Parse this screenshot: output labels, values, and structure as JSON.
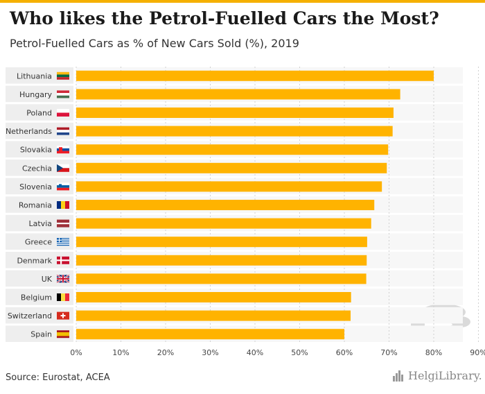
{
  "title": "Who likes the Petrol-Fuelled Cars the Most?",
  "subtitle": "Petrol-Fuelled Cars as % of New Cars Sold (%), 2019",
  "source": "Source: Eurostat, ACEA",
  "logo_text": "HelgiLibrary.",
  "colors": {
    "bar": "#ffb300",
    "accent": "#f5b000",
    "label_bg": "#eeeeee",
    "row_bg": "#f7f7f7"
  },
  "chart_data": {
    "type": "bar",
    "orientation": "horizontal",
    "categories": [
      "Lithuania",
      "Hungary",
      "Poland",
      "Netherlands",
      "Slovakia",
      "Czechia",
      "Slovenia",
      "Romania",
      "Latvia",
      "Greece",
      "Denmark",
      "UK",
      "Belgium",
      "Switzerland",
      "Spain"
    ],
    "values": [
      80.0,
      72.5,
      71.0,
      70.8,
      69.8,
      69.5,
      68.4,
      66.7,
      66.0,
      65.1,
      65.0,
      64.9,
      61.5,
      61.4,
      60.0
    ],
    "xlim": [
      0,
      90
    ],
    "ticks": [
      "0%",
      "10%",
      "20%",
      "30%",
      "40%",
      "50%",
      "60%",
      "70%",
      "80%",
      "90%"
    ],
    "grid": "vertical dashed",
    "flags": [
      "lithuania-flag",
      "hungary-flag",
      "poland-flag",
      "netherlands-flag",
      "slovakia-flag",
      "czechia-flag",
      "slovenia-flag",
      "romania-flag",
      "latvia-flag",
      "greece-flag",
      "denmark-flag",
      "uk-flag",
      "belgium-flag",
      "switzerland-flag",
      "spain-flag"
    ]
  }
}
